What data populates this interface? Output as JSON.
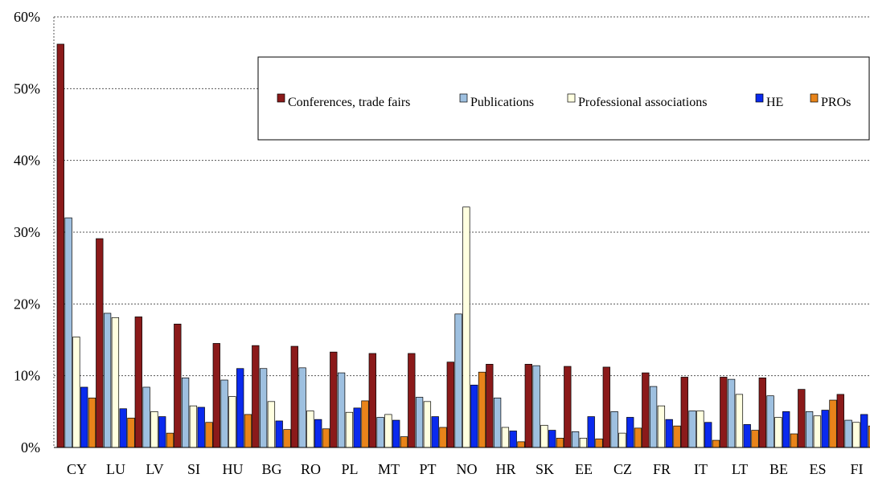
{
  "chart_data": {
    "type": "bar",
    "categories": [
      "CY",
      "LU",
      "LV",
      "SI",
      "HU",
      "BG",
      "RO",
      "PL",
      "MT",
      "PT",
      "NO",
      "HR",
      "SK",
      "EE",
      "CZ",
      "FR",
      "IT",
      "LT",
      "BE",
      "ES",
      "FI"
    ],
    "series": [
      {
        "name": "Conferences, trade fairs",
        "color": "#8b1a1a",
        "values": [
          56.2,
          29.1,
          18.2,
          17.2,
          14.5,
          14.2,
          14.1,
          13.3,
          13.1,
          13.1,
          11.9,
          11.6,
          11.6,
          11.3,
          11.2,
          10.4,
          9.8,
          9.8,
          9.7,
          8.1,
          7.4
        ]
      },
      {
        "name": "Publications",
        "color": "#9ec0e0",
        "values": [
          32.0,
          18.7,
          8.4,
          9.7,
          9.4,
          11.0,
          11.1,
          10.4,
          4.2,
          7.0,
          18.6,
          6.9,
          11.4,
          2.2,
          5.0,
          8.5,
          5.1,
          9.5,
          7.2,
          5.0,
          3.8
        ]
      },
      {
        "name": "Professional associations",
        "color": "#ffffe0",
        "values": [
          15.4,
          18.1,
          5.0,
          5.8,
          7.1,
          6.4,
          5.1,
          4.9,
          4.6,
          6.4,
          33.5,
          2.8,
          3.1,
          1.3,
          2.0,
          5.8,
          5.1,
          7.4,
          4.2,
          4.4,
          3.5
        ]
      },
      {
        "name": "HE",
        "color": "#0a2aee",
        "values": [
          8.4,
          5.4,
          4.3,
          5.6,
          11.0,
          3.7,
          3.9,
          5.5,
          3.8,
          4.3,
          8.7,
          2.3,
          2.4,
          4.3,
          4.2,
          3.9,
          3.5,
          3.2,
          5.0,
          5.2,
          4.6
        ]
      },
      {
        "name": "PROs",
        "color": "#e8841a",
        "values": [
          6.9,
          4.1,
          2.0,
          3.5,
          4.6,
          2.5,
          2.6,
          6.5,
          1.5,
          2.8,
          10.5,
          0.8,
          1.3,
          1.2,
          2.7,
          3.0,
          1.0,
          2.4,
          1.9,
          6.6,
          3.0
        ]
      }
    ],
    "ylim": [
      0,
      60
    ],
    "yticks": [
      0,
      10,
      20,
      30,
      40,
      50,
      60
    ],
    "ytick_labels": [
      "0%",
      "10%",
      "20%",
      "30%",
      "40%",
      "50%",
      "60%"
    ],
    "title": "",
    "xlabel": "",
    "ylabel": "",
    "grid": "horizontal dotted",
    "legend_position": "top-right"
  }
}
